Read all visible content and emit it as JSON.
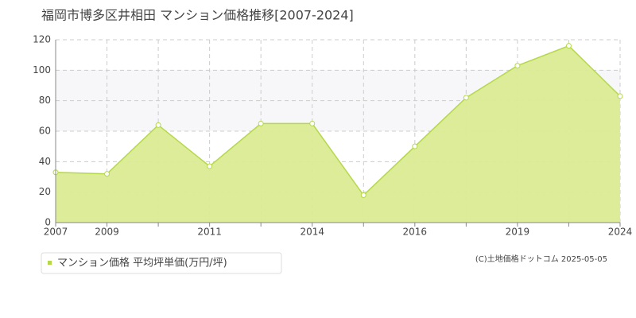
{
  "chart_data": {
    "type": "area",
    "title": "福岡市博多区井相田 マンション価格推移[2007-2024]",
    "categories": [
      "2007",
      "2009",
      null,
      "2011",
      null,
      "2014",
      null,
      "2016",
      null,
      "2019",
      null,
      "2024"
    ],
    "series": [
      {
        "name": "マンション価格 平均坪単価(万円/坪)",
        "color": "#b5d84a",
        "values": [
          33,
          32,
          64,
          37,
          65,
          65,
          18,
          50,
          82,
          103,
          116,
          83
        ]
      }
    ],
    "ylim": [
      0,
      120
    ],
    "yticks": [
      0,
      20,
      40,
      60,
      80,
      100,
      120
    ],
    "grid": true,
    "copyright": "(C)土地価格ドットコム 2025-05-05"
  }
}
